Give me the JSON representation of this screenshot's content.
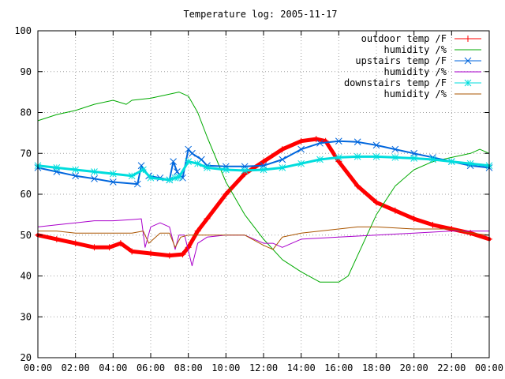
{
  "chart_data": {
    "type": "line",
    "title": "Temperature log: 2005-11-17",
    "xlabel": "",
    "ylabel": "",
    "x_unit": "hours",
    "xlim": [
      0,
      24
    ],
    "ylim": [
      20,
      100
    ],
    "x_ticks": [
      {
        "value": 0,
        "label": "00:00"
      },
      {
        "value": 2,
        "label": "02:00"
      },
      {
        "value": 4,
        "label": "04:00"
      },
      {
        "value": 6,
        "label": "06:00"
      },
      {
        "value": 8,
        "label": "08:00"
      },
      {
        "value": 10,
        "label": "10:00"
      },
      {
        "value": 12,
        "label": "12:00"
      },
      {
        "value": 14,
        "label": "14:00"
      },
      {
        "value": 16,
        "label": "16:00"
      },
      {
        "value": 18,
        "label": "18:00"
      },
      {
        "value": 20,
        "label": "20:00"
      },
      {
        "value": 22,
        "label": "22:00"
      },
      {
        "value": 24,
        "label": "00:00"
      }
    ],
    "y_ticks": [
      {
        "value": 20,
        "label": "20"
      },
      {
        "value": 30,
        "label": "30"
      },
      {
        "value": 40,
        "label": "40"
      },
      {
        "value": 50,
        "label": "50"
      },
      {
        "value": 60,
        "label": "60"
      },
      {
        "value": 70,
        "label": "70"
      },
      {
        "value": 80,
        "label": "80"
      },
      {
        "value": 90,
        "label": "90"
      },
      {
        "value": 100,
        "label": "100"
      }
    ],
    "grid": true,
    "legend_position": "top-right",
    "series": [
      {
        "name": "outdoor temp /F",
        "color": "#ff0000",
        "marker": "plus",
        "line_width": 5,
        "x": [
          0,
          1,
          2,
          3,
          3.8,
          4.4,
          5,
          6,
          7,
          7.7,
          8,
          8.5,
          9,
          10,
          11,
          12,
          13,
          14,
          14.8,
          15.3,
          16,
          17,
          18,
          19,
          20,
          21,
          22,
          23,
          24
        ],
        "y": [
          50,
          49,
          48,
          47,
          47,
          48,
          46,
          45.5,
          45,
          45.3,
          47,
          51,
          54,
          60,
          65,
          68,
          71,
          73,
          73.5,
          73,
          68,
          62,
          58,
          56,
          54,
          52.5,
          51.5,
          50.5,
          49
        ]
      },
      {
        "name": "humidity /%",
        "color": "#00aa00",
        "marker": "none",
        "line_width": 1,
        "x": [
          0,
          1,
          2,
          3,
          4,
          4.7,
          5,
          6,
          7,
          7.5,
          8,
          8.5,
          9,
          10,
          11,
          12,
          13,
          14,
          15,
          16,
          16.5,
          17,
          18,
          19,
          20,
          21,
          22,
          23,
          23.5,
          24
        ],
        "y": [
          78,
          79.5,
          80.5,
          82,
          83,
          82,
          83,
          83.5,
          84.5,
          85,
          84,
          80,
          74,
          63,
          55,
          49,
          44,
          41,
          38.5,
          38.5,
          40,
          45,
          55,
          62,
          66,
          68,
          69,
          70,
          71,
          70
        ]
      },
      {
        "name": "upstairs temp /F",
        "color": "#0066dd",
        "marker": "cross",
        "line_width": 2,
        "x": [
          0,
          1,
          2,
          3,
          4,
          5.3,
          5.5,
          5.9,
          6.5,
          7,
          7.2,
          7.4,
          7.7,
          8,
          8.2,
          8.7,
          9,
          10,
          11,
          12,
          13,
          14,
          15,
          16,
          17,
          18,
          19,
          20,
          21,
          22,
          23,
          24
        ],
        "y": [
          66.5,
          65.5,
          64.5,
          63.8,
          63,
          62.5,
          67,
          64.5,
          64,
          63.5,
          68,
          65.5,
          64,
          71,
          70,
          68.5,
          67,
          66.8,
          66.8,
          67,
          68.5,
          71,
          72.5,
          73,
          72.8,
          72,
          71,
          70,
          69,
          68,
          67,
          66.5
        ]
      },
      {
        "name": "humidity /%",
        "color": "#aa00cc",
        "marker": "none",
        "line_width": 1,
        "x": [
          0,
          1,
          2,
          3,
          4,
          5,
          5.5,
          5.7,
          6,
          6.5,
          7,
          7.3,
          7.5,
          7.8,
          8.2,
          8.5,
          9,
          10,
          11,
          11.5,
          12,
          12.5,
          13,
          14,
          16,
          18,
          20,
          22,
          24
        ],
        "y": [
          52,
          52.5,
          53,
          53.5,
          53.5,
          53.8,
          54,
          47,
          52,
          53,
          52,
          46.5,
          50,
          50,
          42.5,
          48,
          49.5,
          50,
          50,
          49,
          48,
          48,
          47,
          49,
          49.5,
          50,
          50.5,
          51,
          51
        ]
      },
      {
        "name": "downstairs temp /F",
        "color": "#00dddd",
        "marker": "star",
        "line_width": 3,
        "x": [
          0,
          1,
          2,
          3,
          4,
          5,
          5.6,
          6,
          7,
          7.3,
          7.5,
          8,
          8.5,
          9,
          10,
          11,
          12,
          13,
          14,
          15,
          16,
          17,
          18,
          19,
          20,
          21,
          22,
          23,
          24
        ],
        "y": [
          67,
          66.5,
          66,
          65.5,
          65,
          64.5,
          66,
          64,
          63.5,
          64,
          64.2,
          68,
          67.5,
          66.5,
          66,
          65.8,
          66,
          66.5,
          67.5,
          68.5,
          69,
          69.2,
          69.2,
          69,
          68.8,
          68.5,
          68,
          67.5,
          67
        ]
      },
      {
        "name": "humidity /%",
        "color": "#aa5500",
        "marker": "none",
        "line_width": 1,
        "x": [
          0,
          1,
          2,
          3,
          4,
          5,
          5.6,
          5.9,
          6.5,
          7,
          7.3,
          7.6,
          8,
          9,
          10,
          11,
          12,
          12.5,
          13,
          14,
          15,
          16,
          17,
          18,
          20,
          22,
          23,
          24
        ],
        "y": [
          51,
          51,
          50.5,
          50.5,
          50.5,
          50.5,
          51,
          48,
          50.5,
          50.5,
          47,
          49.5,
          50,
          50,
          50,
          50,
          47.5,
          46.5,
          49.5,
          50.5,
          51,
          51.5,
          52,
          52,
          51.5,
          51.5,
          50.5,
          50
        ]
      }
    ]
  }
}
